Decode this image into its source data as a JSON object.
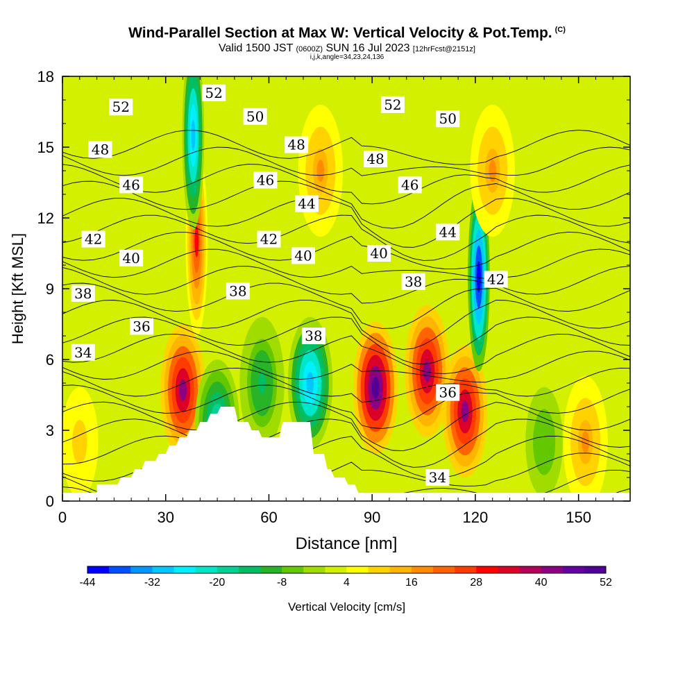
{
  "header": {
    "title": "Wind-Parallel Section at Max W: Vertical Velocity & Pot.Temp.",
    "copyright": "(C)",
    "valid_prefix": "Valid 1500 JST",
    "valid_utc": "(0600Z)",
    "valid_date": "SUN 16 Jul 2023",
    "forecast": "[12hrFcst@2151z]",
    "grid_info": "i,j,k,angle=34,23,24,136"
  },
  "chart_data": {
    "type": "heatmap",
    "xlabel": "Distance [nm]",
    "ylabel": "Height [Kft MSL]",
    "xlim": [
      0,
      165
    ],
    "ylim": [
      0,
      18
    ],
    "x_ticks": [
      0,
      30,
      60,
      90,
      120,
      150
    ],
    "y_ticks": [
      0,
      3,
      6,
      9,
      12,
      15,
      18
    ],
    "colorbar": {
      "label": "Vertical Velocity [cm/s]",
      "tick_labels": [
        "-44",
        "-32",
        "-20",
        "-8",
        "4",
        "16",
        "28",
        "40",
        "52"
      ],
      "colors": [
        "#0000ff",
        "#0050ff",
        "#0096ff",
        "#00c8ff",
        "#00f0ff",
        "#00e6c8",
        "#00d296",
        "#00be64",
        "#28b428",
        "#64c800",
        "#a0dc00",
        "#d2f000",
        "#ffff00",
        "#ffd200",
        "#ffb400",
        "#ff8c00",
        "#ff6400",
        "#ff3c00",
        "#ff0000",
        "#dc0028",
        "#b4005a",
        "#8c0082",
        "#6400a0",
        "#500096"
      ]
    },
    "terrain": [
      [
        0,
        0.35
      ],
      [
        10,
        0.35
      ],
      [
        10,
        0.7
      ],
      [
        16,
        0.7
      ],
      [
        17,
        1.0
      ],
      [
        20,
        1.0
      ],
      [
        21,
        1.35
      ],
      [
        23,
        1.35
      ],
      [
        24,
        1.7
      ],
      [
        27,
        1.7
      ],
      [
        28,
        2.0
      ],
      [
        30,
        2.0
      ],
      [
        31,
        2.35
      ],
      [
        33,
        2.35
      ],
      [
        34,
        2.7
      ],
      [
        36,
        2.7
      ],
      [
        37,
        3.0
      ],
      [
        39,
        3.0
      ],
      [
        40,
        3.35
      ],
      [
        42,
        3.35
      ],
      [
        43,
        3.7
      ],
      [
        45,
        3.7
      ],
      [
        46,
        4.0
      ],
      [
        50,
        4.0
      ],
      [
        51,
        3.35
      ],
      [
        54,
        3.35
      ],
      [
        55,
        3.0
      ],
      [
        57,
        3.0
      ],
      [
        58,
        2.7
      ],
      [
        63,
        2.7
      ],
      [
        64,
        3.35
      ],
      [
        72,
        3.35
      ],
      [
        73,
        2.0
      ],
      [
        76,
        2.0
      ],
      [
        77,
        1.35
      ],
      [
        78,
        1.35
      ],
      [
        79,
        1.0
      ],
      [
        82,
        1.0
      ],
      [
        83,
        0.7
      ],
      [
        85,
        0.7
      ],
      [
        86,
        0.35
      ],
      [
        88,
        0.35
      ],
      [
        88,
        0
      ]
    ],
    "vertical_velocity_features": [
      {
        "x": 35,
        "y": 4.7,
        "value": 40
      },
      {
        "x": 39,
        "y": 11,
        "value": 28
      },
      {
        "x": 38,
        "y": 15.5,
        "value": -32
      },
      {
        "x": 45,
        "y": 3.2,
        "value": -20
      },
      {
        "x": 58,
        "y": 5,
        "value": -14
      },
      {
        "x": 72,
        "y": 5,
        "value": -32
      },
      {
        "x": 91,
        "y": 4.8,
        "value": 52
      },
      {
        "x": 106,
        "y": 5.5,
        "value": 40
      },
      {
        "x": 117,
        "y": 3.8,
        "value": 40
      },
      {
        "x": 121,
        "y": 9.5,
        "value": -44
      },
      {
        "x": 125,
        "y": 14,
        "value": 16
      },
      {
        "x": 75,
        "y": 14,
        "value": 16
      },
      {
        "x": 140,
        "y": 2.5,
        "value": -8
      },
      {
        "x": 152,
        "y": 2.5,
        "value": 16
      },
      {
        "x": 5,
        "y": 2.5,
        "value": 10
      }
    ],
    "theta_labels": [
      {
        "text": "52",
        "x": 17,
        "y": 16.7
      },
      {
        "text": "52",
        "x": 44,
        "y": 17.3
      },
      {
        "text": "52",
        "x": 96,
        "y": 16.8
      },
      {
        "text": "50",
        "x": 56,
        "y": 16.3
      },
      {
        "text": "50",
        "x": 112,
        "y": 16.2
      },
      {
        "text": "48",
        "x": 11,
        "y": 14.9
      },
      {
        "text": "48",
        "x": 68,
        "y": 15.1
      },
      {
        "text": "48",
        "x": 91,
        "y": 14.5
      },
      {
        "text": "46",
        "x": 20,
        "y": 13.4
      },
      {
        "text": "46",
        "x": 59,
        "y": 13.6
      },
      {
        "text": "46",
        "x": 101,
        "y": 13.4
      },
      {
        "text": "44",
        "x": 71,
        "y": 12.6
      },
      {
        "text": "44",
        "x": 112,
        "y": 11.4
      },
      {
        "text": "42",
        "x": 9,
        "y": 11.1
      },
      {
        "text": "42",
        "x": 60,
        "y": 11.1
      },
      {
        "text": "42",
        "x": 126,
        "y": 9.4
      },
      {
        "text": "40",
        "x": 20,
        "y": 10.3
      },
      {
        "text": "40",
        "x": 70,
        "y": 10.4
      },
      {
        "text": "40",
        "x": 92,
        "y": 10.5
      },
      {
        "text": "38",
        "x": 6,
        "y": 8.8
      },
      {
        "text": "38",
        "x": 51,
        "y": 8.9
      },
      {
        "text": "38",
        "x": 102,
        "y": 9.3
      },
      {
        "text": "38",
        "x": 73,
        "y": 7
      },
      {
        "text": "36",
        "x": 23,
        "y": 7.4
      },
      {
        "text": "36",
        "x": 112,
        "y": 4.6
      },
      {
        "text": "34",
        "x": 6,
        "y": 6.3
      },
      {
        "text": "34",
        "x": 109,
        "y": 1
      }
    ]
  }
}
